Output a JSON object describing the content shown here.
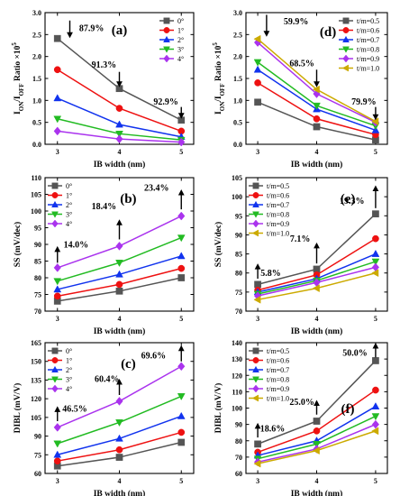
{
  "chart_data": [
    {
      "panel": "(a)",
      "type": "line",
      "xlabel": "IB width (nm)",
      "ylabel_parts": {
        "main": "I",
        "sub1": "ON",
        "mid": "/I",
        "sub2": "OFF",
        "tail": " Ratio ×10",
        "sup": "5"
      },
      "x": [
        3,
        4,
        5
      ],
      "xlim": [
        2.8,
        5.2
      ],
      "ylim": [
        0,
        3.0
      ],
      "yticks": [
        0,
        0.5,
        1.0,
        1.5,
        2.0,
        2.5,
        3.0
      ],
      "tick_labels": [
        "0.0",
        "0.5",
        "1.0",
        "1.5",
        "2.0",
        "2.5",
        "3.0"
      ],
      "legend_position": "top-right",
      "series": [
        {
          "name": "0°",
          "values": [
            2.41,
            1.27,
            0.55
          ],
          "color": "#555555",
          "marker": "square"
        },
        {
          "name": "1°",
          "values": [
            1.7,
            0.82,
            0.3
          ],
          "color": "#ee1111",
          "marker": "circle"
        },
        {
          "name": "2°",
          "values": [
            1.05,
            0.45,
            0.17
          ],
          "color": "#1133ee",
          "marker": "triangle-up"
        },
        {
          "name": "3°",
          "values": [
            0.58,
            0.24,
            0.1
          ],
          "color": "#22bb22",
          "marker": "triangle-down"
        },
        {
          "name": "4°",
          "values": [
            0.3,
            0.12,
            0.05
          ],
          "color": "#aa33ee",
          "marker": "diamond"
        }
      ],
      "annotations": [
        {
          "text": "87.9%",
          "x": 3.55,
          "y": 2.65,
          "arrow": {
            "x": 3.2,
            "y_from": 2.82,
            "y_to": 2.42
          }
        },
        {
          "text": "91.3%",
          "x": 3.75,
          "y": 1.82,
          "arrow": {
            "x": 4.0,
            "y_from": 1.65,
            "y_to": 1.3
          }
        },
        {
          "text": "92.9%",
          "x": 4.75,
          "y": 0.98,
          "arrow": {
            "x": 5.0,
            "y_from": 0.85,
            "y_to": 0.58
          }
        }
      ]
    },
    {
      "panel": "(d)",
      "type": "line",
      "xlabel": "IB width (nm)",
      "ylabel_parts": {
        "main": "I",
        "sub1": "ON",
        "mid": "/I",
        "sub2": "OFF",
        "tail": " Ratio ×10",
        "sup": "5"
      },
      "x": [
        3,
        4,
        5
      ],
      "xlim": [
        2.8,
        5.2
      ],
      "ylim": [
        0,
        3.0
      ],
      "yticks": [
        0,
        0.5,
        1.0,
        1.5,
        2.0,
        2.5,
        3.0
      ],
      "tick_labels": [
        "0.0",
        "0.5",
        "1.0",
        "1.5",
        "2.0",
        "2.5",
        "3.0"
      ],
      "legend_position": "top-right",
      "series": [
        {
          "name": "t/m=0.5",
          "values": [
            0.96,
            0.4,
            0.1
          ],
          "color": "#555555",
          "marker": "square"
        },
        {
          "name": "t/m=0.6",
          "values": [
            1.4,
            0.58,
            0.22
          ],
          "color": "#ee1111",
          "marker": "circle"
        },
        {
          "name": "t/m=0.7",
          "values": [
            1.7,
            0.8,
            0.32
          ],
          "color": "#1133ee",
          "marker": "triangle-up"
        },
        {
          "name": "t/m=0.8",
          "values": [
            1.87,
            0.88,
            0.42
          ],
          "color": "#22bb22",
          "marker": "triangle-down"
        },
        {
          "name": "t/m=0.9",
          "values": [
            2.32,
            1.15,
            0.5
          ],
          "color": "#aa33ee",
          "marker": "diamond"
        },
        {
          "name": "t/m=1.0",
          "values": [
            2.4,
            1.25,
            0.52
          ],
          "color": "#ccaa00",
          "marker": "triangle-left"
        }
      ],
      "annotations": [
        {
          "text": "59.9%",
          "x": 3.65,
          "y": 2.8,
          "arrow": {
            "x": 3.15,
            "y_from": 2.95,
            "y_to": 2.45
          }
        },
        {
          "text": "68.5%",
          "x": 3.75,
          "y": 1.85,
          "arrow": {
            "x": 4.0,
            "y_from": 1.7,
            "y_to": 1.3
          }
        },
        {
          "text": "79.9%",
          "x": 4.8,
          "y": 0.98,
          "arrow": {
            "x": 5.0,
            "y_from": 0.85,
            "y_to": 0.55
          }
        }
      ]
    },
    {
      "panel": "(b)",
      "type": "line",
      "xlabel": "IB width (nm)",
      "ylabel": "SS (mV/dec)",
      "x": [
        3,
        4,
        5
      ],
      "xlim": [
        2.8,
        5.2
      ],
      "ylim": [
        70,
        110
      ],
      "yticks": [
        70,
        75,
        80,
        85,
        90,
        95,
        100,
        105,
        110
      ],
      "tick_labels": [
        "70",
        "75",
        "80",
        "85",
        "90",
        "95",
        "100",
        "105",
        "110"
      ],
      "legend_position": "top-left",
      "series": [
        {
          "name": "0°",
          "values": [
            73.0,
            76.0,
            80.0
          ],
          "color": "#555555",
          "marker": "square"
        },
        {
          "name": "1°",
          "values": [
            74.5,
            78.0,
            82.8
          ],
          "color": "#ee1111",
          "marker": "circle"
        },
        {
          "name": "2°",
          "values": [
            76.5,
            81.0,
            86.5
          ],
          "color": "#1133ee",
          "marker": "triangle-up"
        },
        {
          "name": "3°",
          "values": [
            79.0,
            84.5,
            92.0
          ],
          "color": "#22bb22",
          "marker": "triangle-down"
        },
        {
          "name": "4°",
          "values": [
            83.0,
            89.5,
            98.5
          ],
          "color": "#aa33ee",
          "marker": "diamond"
        }
      ],
      "annotations": [
        {
          "text": "14.0%",
          "x": 3.3,
          "y": 90.0,
          "arrow": {
            "x": 3.0,
            "y_from": 84.5,
            "y_to": 89.5
          }
        },
        {
          "text": "18.4%",
          "x": 3.75,
          "y": 101.5,
          "arrow": {
            "x": 4.0,
            "y_from": 91.5,
            "y_to": 97.5
          }
        },
        {
          "text": "23.4%",
          "x": 4.6,
          "y": 107.0,
          "arrow": {
            "x": 5.0,
            "y_from": 100.5,
            "y_to": 106.5
          }
        }
      ]
    },
    {
      "panel": "(e)",
      "type": "line",
      "xlabel": "IB width (nm)",
      "ylabel": "SS (mV/dec)",
      "x": [
        3,
        4,
        5
      ],
      "xlim": [
        2.8,
        5.2
      ],
      "ylim": [
        70,
        105
      ],
      "yticks": [
        70,
        75,
        80,
        85,
        90,
        95,
        100,
        105
      ],
      "tick_labels": [
        "70",
        "75",
        "80",
        "85",
        "90",
        "95",
        "100",
        "105"
      ],
      "legend_position": "top-left",
      "series": [
        {
          "name": "t/m=0.5",
          "values": [
            77.0,
            81.0,
            95.5
          ],
          "color": "#555555",
          "marker": "square"
        },
        {
          "name": "t/m=0.6",
          "values": [
            75.5,
            79.5,
            89.0
          ],
          "color": "#ee1111",
          "marker": "circle"
        },
        {
          "name": "t/m=0.7",
          "values": [
            75.0,
            78.5,
            85.0
          ],
          "color": "#1133ee",
          "marker": "triangle-up"
        },
        {
          "name": "t/m=0.8",
          "values": [
            74.5,
            78.0,
            83.0
          ],
          "color": "#22bb22",
          "marker": "triangle-down"
        },
        {
          "name": "t/m=0.9",
          "values": [
            74.0,
            77.5,
            81.5
          ],
          "color": "#aa33ee",
          "marker": "diamond"
        },
        {
          "name": "t/m=1.0",
          "values": [
            73.0,
            76.0,
            80.0
          ],
          "color": "#ccaa00",
          "marker": "triangle-left"
        }
      ],
      "annotations": [
        {
          "text": "5.8%",
          "x": 3.22,
          "y": 80.0,
          "arrow": {
            "x": 3.0,
            "y_from": 78.5,
            "y_to": 82.5
          }
        },
        {
          "text": "7.1%",
          "x": 3.72,
          "y": 89.0,
          "arrow": {
            "x": 4.0,
            "y_from": 82.5,
            "y_to": 88.0
          }
        },
        {
          "text": "19.3%",
          "x": 4.6,
          "y": 99.0,
          "arrow": {
            "x": 5.0,
            "y_from": 97.0,
            "y_to": 103.0
          }
        }
      ]
    },
    {
      "panel": "(c)",
      "type": "line",
      "xlabel": "IB width (nm)",
      "ylabel": "DIBL (mV/V)",
      "x": [
        3,
        4,
        5
      ],
      "xlim": [
        2.8,
        5.2
      ],
      "ylim": [
        60,
        165
      ],
      "yticks": [
        60,
        75,
        90,
        105,
        120,
        135,
        150,
        165
      ],
      "tick_labels": [
        "60",
        "75",
        "90",
        "105",
        "120",
        "135",
        "150",
        "165"
      ],
      "legend_position": "top-left",
      "series": [
        {
          "name": "0°",
          "values": [
            66.0,
            73.0,
            85.0
          ],
          "color": "#555555",
          "marker": "square"
        },
        {
          "name": "1°",
          "values": [
            70.0,
            79.0,
            93.0
          ],
          "color": "#ee1111",
          "marker": "circle"
        },
        {
          "name": "2°",
          "values": [
            75.0,
            88.0,
            106.0
          ],
          "color": "#1133ee",
          "marker": "triangle-up"
        },
        {
          "name": "3°",
          "values": [
            84.0,
            101.0,
            122.0
          ],
          "color": "#22bb22",
          "marker": "triangle-down"
        },
        {
          "name": "4°",
          "values": [
            97.0,
            118.0,
            146.0
          ],
          "color": "#aa33ee",
          "marker": "diamond"
        }
      ],
      "annotations": [
        {
          "text": "46.5%",
          "x": 3.28,
          "y": 112.0,
          "arrow": {
            "x": 3.0,
            "y_from": 102.0,
            "y_to": 114.0
          }
        },
        {
          "text": "60.4%",
          "x": 3.8,
          "y": 136.0,
          "arrow": {
            "x": 4.0,
            "y_from": 123.0,
            "y_to": 136.0
          }
        },
        {
          "text": "69.6%",
          "x": 4.55,
          "y": 155.0,
          "arrow": {
            "x": 5.0,
            "y_from": 150.0,
            "y_to": 163.0
          }
        }
      ]
    },
    {
      "panel": "(f)",
      "type": "line",
      "xlabel": "IB width (nm)",
      "ylabel": "DIBL (mV/V)",
      "x": [
        3,
        4,
        5
      ],
      "xlim": [
        2.8,
        5.2
      ],
      "ylim": [
        60,
        140
      ],
      "yticks": [
        60,
        70,
        80,
        90,
        100,
        110,
        120,
        130,
        140
      ],
      "tick_labels": [
        "60",
        "70",
        "80",
        "90",
        "100",
        "110",
        "120",
        "130",
        "140"
      ],
      "legend_position": "top-left",
      "series": [
        {
          "name": "t/m=0.5",
          "values": [
            78.0,
            92.0,
            129.0
          ],
          "color": "#555555",
          "marker": "square"
        },
        {
          "name": "t/m=0.6",
          "values": [
            73.0,
            86.0,
            111.0
          ],
          "color": "#ee1111",
          "marker": "circle"
        },
        {
          "name": "t/m=0.7",
          "values": [
            71.0,
            80.0,
            101.0
          ],
          "color": "#1133ee",
          "marker": "triangle-up"
        },
        {
          "name": "t/m=0.8",
          "values": [
            69.0,
            78.0,
            95.0
          ],
          "color": "#22bb22",
          "marker": "triangle-down"
        },
        {
          "name": "t/m=0.9",
          "values": [
            67.0,
            75.0,
            90.0
          ],
          "color": "#aa33ee",
          "marker": "diamond"
        },
        {
          "name": "t/m=1.0",
          "values": [
            66.0,
            74.0,
            86.0
          ],
          "color": "#ccaa00",
          "marker": "triangle-left"
        }
      ],
      "annotations": [
        {
          "text": "18.6%",
          "x": 3.25,
          "y": 87.5,
          "arrow": {
            "x": 3.0,
            "y_from": 82.0,
            "y_to": 91.0
          }
        },
        {
          "text": "25.0%",
          "x": 3.75,
          "y": 104.0,
          "arrow": {
            "x": 4.0,
            "y_from": 96.0,
            "y_to": 105.0
          }
        },
        {
          "text": "50.0%",
          "x": 4.65,
          "y": 134.0,
          "arrow": {
            "x": 5.0,
            "y_from": 131.0,
            "y_to": 140.0
          }
        }
      ]
    }
  ]
}
